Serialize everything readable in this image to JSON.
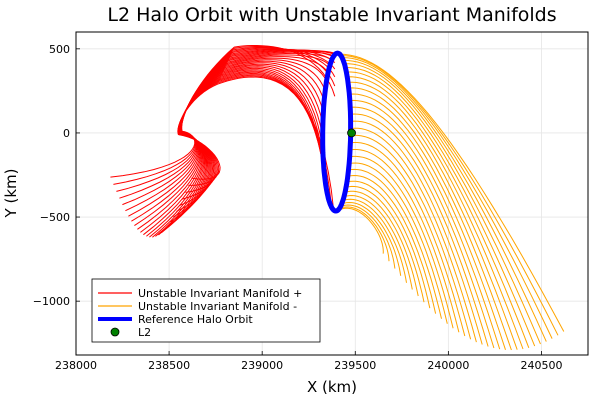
{
  "chart_data": {
    "type": "line",
    "title": "L2 Halo Orbit with Unstable Invariant Manifolds",
    "xlabel": "X (km)",
    "ylabel": "Y (km)",
    "xlim": [
      238000,
      240750
    ],
    "ylim": [
      -1320,
      600
    ],
    "xticks": [
      238000,
      238500,
      239000,
      239500,
      240000,
      240500
    ],
    "xtick_labels": [
      "238000",
      "238500",
      "239000",
      "239500",
      "240000",
      "240500"
    ],
    "yticks": [
      500,
      0,
      -500,
      -1000
    ],
    "ytick_labels": [
      "500",
      "0",
      "−500",
      "−1000"
    ],
    "grid": true,
    "legend_position": "bottom-left",
    "colors": {
      "manifold_plus": "#ff0000",
      "manifold_minus": "#ffa500",
      "halo": "#0000ff",
      "l2": "#008000"
    },
    "halo_orbit": {
      "center": [
        239400,
        5
      ],
      "x_amplitude": 75,
      "y_amplitude": 470,
      "rotation": 0.06
    },
    "l2_point": {
      "x": 239480,
      "y": 0
    },
    "manifold_plus": {
      "trajectory_count": 28,
      "swirl_center": [
        238530,
        0
      ],
      "tail_end_range_x": [
        238040,
        238620
      ],
      "tail_end_range_y": [
        -200,
        -620
      ]
    },
    "manifold_minus": {
      "trajectory_count": 32,
      "tail_end_range_x": [
        239650,
        240620
      ],
      "tail_end_range_y": [
        -200,
        -1290
      ]
    },
    "series": [
      {
        "name": "Unstable Invariant Manifold +",
        "color": "#ff0000",
        "style": "line"
      },
      {
        "name": "Unstable Invariant Manifold -",
        "color": "#ffa500",
        "style": "line"
      },
      {
        "name": "Reference Halo Orbit",
        "color": "#0000ff",
        "style": "thick-line"
      },
      {
        "name": "L2",
        "color": "#008000",
        "style": "marker"
      }
    ]
  }
}
